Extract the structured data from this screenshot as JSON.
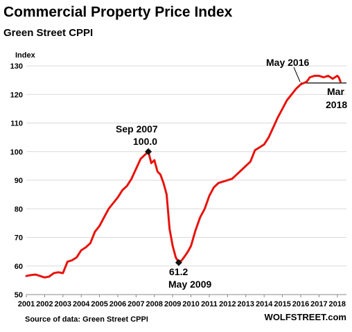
{
  "chart_data": {
    "type": "line",
    "title": "Commercial Property Price Index",
    "subtitle": "Green Street CPPI",
    "ylabel": "Index",
    "xlabel": "",
    "ylim": [
      50,
      130
    ],
    "xlim": [
      2001.0,
      2018.5
    ],
    "yticks": [
      50,
      60,
      70,
      80,
      90,
      100,
      110,
      120,
      130
    ],
    "xticks": [
      "2001",
      "2002",
      "2003",
      "2004",
      "2005",
      "2006",
      "2007",
      "2008",
      "2009",
      "2010",
      "2011",
      "2012",
      "2013",
      "2014",
      "2015",
      "2016",
      "2017",
      "2018"
    ],
    "grid": "horizontal",
    "series": [
      {
        "color": "#e8120c",
        "x": [
          2001.0,
          2001.25,
          2001.5,
          2001.75,
          2002.0,
          2002.25,
          2002.5,
          2002.75,
          2003.0,
          2003.25,
          2003.5,
          2003.75,
          2004.0,
          2004.25,
          2004.5,
          2004.75,
          2005.0,
          2005.25,
          2005.5,
          2005.75,
          2006.0,
          2006.25,
          2006.5,
          2006.75,
          2007.0,
          2007.25,
          2007.5,
          2007.67,
          2007.83,
          2008.0,
          2008.17,
          2008.33,
          2008.5,
          2008.67,
          2008.83,
          2009.0,
          2009.17,
          2009.33,
          2009.5,
          2009.67,
          2009.83,
          2010.0,
          2010.25,
          2010.5,
          2010.75,
          2011.0,
          2011.25,
          2011.5,
          2011.75,
          2012.0,
          2012.25,
          2012.5,
          2012.75,
          2013.0,
          2013.25,
          2013.5,
          2013.75,
          2014.0,
          2014.25,
          2014.5,
          2014.75,
          2015.0,
          2015.25,
          2015.5,
          2015.75,
          2016.0,
          2016.17,
          2016.33,
          2016.5,
          2016.75,
          2017.0,
          2017.25,
          2017.5,
          2017.75,
          2018.0,
          2018.08,
          2018.17
        ],
        "y": [
          56.5,
          56.8,
          57.0,
          56.5,
          56.0,
          56.3,
          57.5,
          57.8,
          57.5,
          61.5,
          62.0,
          63.0,
          65.5,
          66.5,
          68.0,
          72.0,
          74.0,
          77.0,
          80.0,
          82.0,
          84.0,
          86.5,
          88.0,
          90.5,
          94.0,
          97.5,
          99.0,
          100.0,
          96.0,
          97.0,
          93.0,
          92.0,
          89.0,
          85.0,
          73.0,
          67.0,
          63.0,
          61.2,
          62.0,
          63.5,
          65.0,
          67.0,
          72.5,
          77.0,
          80.0,
          84.5,
          87.5,
          89.0,
          89.5,
          90.0,
          90.5,
          92.0,
          93.5,
          95.0,
          96.5,
          100.5,
          101.5,
          102.5,
          105.0,
          108.5,
          112.0,
          115.0,
          118.0,
          120.0,
          122.0,
          123.5,
          124.0,
          124.5,
          126.0,
          126.5,
          126.5,
          126.0,
          126.5,
          125.5,
          126.5,
          126.0,
          124.5
        ]
      }
    ],
    "annotations": [
      {
        "x": 2007.67,
        "y": 100.0,
        "lines": [
          "Sep 2007",
          "100.0"
        ],
        "marker": "diamond"
      },
      {
        "x": 2009.33,
        "y": 61.2,
        "lines": [
          "61.2",
          "May 2009"
        ],
        "marker": "diamond"
      },
      {
        "label": "May 2016"
      },
      {
        "lines": [
          "Mar",
          "2018"
        ]
      }
    ],
    "reference_line": {
      "y": 124.0,
      "x_start": 2016.0,
      "x_end": 2018.5
    }
  },
  "footer": {
    "source": "Source of data: Green Street CPPI",
    "brand": "WOLFSTREET.com"
  }
}
